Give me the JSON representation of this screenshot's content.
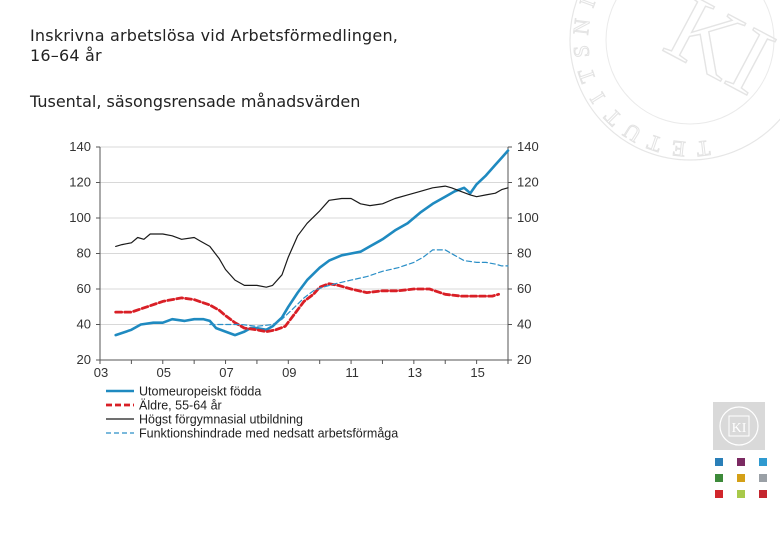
{
  "page": {
    "title": "Inskrivna arbetslösa vid Arbetsförmedlingen,\n16–64 år",
    "subtitle": "Tusental, säsongsrensade månadsvärden"
  },
  "watermark": {
    "lettering": [
      "K",
      "I",
      "I",
      "N",
      "S",
      "T",
      "I",
      "T",
      "U",
      "T",
      "E",
      "T"
    ],
    "logo_small": "KI"
  },
  "colors": {
    "blue": "#1f8ac0",
    "red": "#d91f26",
    "black": "#1a1a1a",
    "dashblue": "#2b8fc7",
    "grid": "#d8d8d8",
    "swatches": [
      "#2a7fb8",
      "#7b2a62",
      "#2f9ad0",
      "#3d8a3a",
      "#d4a017",
      "#9aa0a6",
      "#d1262b",
      "#a8c94a",
      "#c4262e"
    ]
  },
  "chart_data": {
    "type": "line",
    "title": "Inskrivna arbetslösa vid Arbetsförmedlingen, 16–64 år",
    "ylabel": "Tusental",
    "ylim": [
      20,
      140
    ],
    "yticks": [
      20,
      40,
      60,
      80,
      100,
      120,
      140
    ],
    "ytick_labels": [
      "20",
      "40",
      "60",
      "80",
      "100",
      "120",
      "140"
    ],
    "xlim": [
      2003,
      2016
    ],
    "xticks": [
      2003,
      2005,
      2007,
      2009,
      2011,
      2013,
      2015
    ],
    "xtick_labels": [
      "03",
      "05",
      "07",
      "09",
      "11",
      "13",
      "15"
    ],
    "grid": true,
    "legend_position": "bottom-left",
    "series": [
      {
        "name": "Utomeuropeiskt födda",
        "style": "solid",
        "color_key": "blue",
        "points": [
          [
            2003.5,
            34
          ],
          [
            2004.0,
            37
          ],
          [
            2004.3,
            40
          ],
          [
            2004.7,
            41
          ],
          [
            2005.0,
            41
          ],
          [
            2005.3,
            43
          ],
          [
            2005.7,
            42
          ],
          [
            2006.0,
            43
          ],
          [
            2006.3,
            43
          ],
          [
            2006.5,
            42
          ],
          [
            2006.7,
            38
          ],
          [
            2007.0,
            36
          ],
          [
            2007.3,
            34
          ],
          [
            2007.6,
            36
          ],
          [
            2007.8,
            38
          ],
          [
            2008.0,
            38
          ],
          [
            2008.3,
            37
          ],
          [
            2008.5,
            39
          ],
          [
            2008.8,
            44
          ],
          [
            2009.0,
            50
          ],
          [
            2009.3,
            58
          ],
          [
            2009.6,
            65
          ],
          [
            2010.0,
            72
          ],
          [
            2010.3,
            76
          ],
          [
            2010.7,
            79
          ],
          [
            2011.0,
            80
          ],
          [
            2011.3,
            81
          ],
          [
            2011.6,
            84
          ],
          [
            2012.0,
            88
          ],
          [
            2012.4,
            93
          ],
          [
            2012.8,
            97
          ],
          [
            2013.2,
            103
          ],
          [
            2013.6,
            108
          ],
          [
            2014.0,
            112
          ],
          [
            2014.3,
            115
          ],
          [
            2014.6,
            117
          ],
          [
            2014.8,
            114
          ],
          [
            2015.0,
            119
          ],
          [
            2015.3,
            124
          ],
          [
            2015.6,
            130
          ],
          [
            2015.8,
            134
          ],
          [
            2016.0,
            138
          ]
        ]
      },
      {
        "name": "Äldre, 55-64 år",
        "style": "dashed",
        "color_key": "red",
        "points": [
          [
            2003.5,
            47
          ],
          [
            2004.0,
            47
          ],
          [
            2004.5,
            50
          ],
          [
            2005.0,
            53
          ],
          [
            2005.3,
            54
          ],
          [
            2005.6,
            55
          ],
          [
            2006.0,
            54
          ],
          [
            2006.5,
            51
          ],
          [
            2006.8,
            48
          ],
          [
            2007.0,
            45
          ],
          [
            2007.3,
            41
          ],
          [
            2007.6,
            38
          ],
          [
            2008.0,
            37
          ],
          [
            2008.3,
            36
          ],
          [
            2008.6,
            37
          ],
          [
            2008.9,
            39
          ],
          [
            2009.2,
            46
          ],
          [
            2009.5,
            53
          ],
          [
            2009.8,
            57
          ],
          [
            2010.0,
            61
          ],
          [
            2010.3,
            63
          ],
          [
            2010.6,
            62
          ],
          [
            2011.0,
            60
          ],
          [
            2011.5,
            58
          ],
          [
            2012.0,
            59
          ],
          [
            2012.5,
            59
          ],
          [
            2013.0,
            60
          ],
          [
            2013.5,
            60
          ],
          [
            2014.0,
            57
          ],
          [
            2014.5,
            56
          ],
          [
            2015.0,
            56
          ],
          [
            2015.5,
            56
          ],
          [
            2015.7,
            57
          ]
        ]
      },
      {
        "name": "Högst förgymnasial utbildning",
        "style": "solid-thin",
        "color_key": "black",
        "points": [
          [
            2003.5,
            84
          ],
          [
            2003.7,
            85
          ],
          [
            2004.0,
            86
          ],
          [
            2004.2,
            89
          ],
          [
            2004.4,
            88
          ],
          [
            2004.6,
            91
          ],
          [
            2005.0,
            91
          ],
          [
            2005.3,
            90
          ],
          [
            2005.6,
            88
          ],
          [
            2006.0,
            89
          ],
          [
            2006.2,
            87
          ],
          [
            2006.5,
            84
          ],
          [
            2006.8,
            77
          ],
          [
            2007.0,
            71
          ],
          [
            2007.3,
            65
          ],
          [
            2007.6,
            62
          ],
          [
            2008.0,
            62
          ],
          [
            2008.3,
            61
          ],
          [
            2008.5,
            62
          ],
          [
            2008.8,
            68
          ],
          [
            2009.0,
            78
          ],
          [
            2009.3,
            90
          ],
          [
            2009.6,
            97
          ],
          [
            2010.0,
            104
          ],
          [
            2010.3,
            110
          ],
          [
            2010.7,
            111
          ],
          [
            2011.0,
            111
          ],
          [
            2011.3,
            108
          ],
          [
            2011.6,
            107
          ],
          [
            2012.0,
            108
          ],
          [
            2012.4,
            111
          ],
          [
            2012.8,
            113
          ],
          [
            2013.2,
            115
          ],
          [
            2013.6,
            117
          ],
          [
            2014.0,
            118
          ],
          [
            2014.2,
            117
          ],
          [
            2014.5,
            115
          ],
          [
            2014.8,
            113
          ],
          [
            2015.0,
            112
          ],
          [
            2015.3,
            113
          ],
          [
            2015.6,
            114
          ],
          [
            2015.8,
            116
          ],
          [
            2016.0,
            117
          ]
        ]
      },
      {
        "name": "Funktionshindrade med nedsatt arbetsförmåga",
        "style": "dashed-thin",
        "color_key": "dashblue",
        "points": [
          [
            2006.5,
            40
          ],
          [
            2007.0,
            40
          ],
          [
            2007.5,
            40
          ],
          [
            2008.0,
            39
          ],
          [
            2008.5,
            40
          ],
          [
            2008.8,
            43
          ],
          [
            2009.1,
            48
          ],
          [
            2009.5,
            55
          ],
          [
            2009.8,
            59
          ],
          [
            2010.1,
            61
          ],
          [
            2010.5,
            63
          ],
          [
            2011.0,
            65
          ],
          [
            2011.5,
            67
          ],
          [
            2012.0,
            70
          ],
          [
            2012.5,
            72
          ],
          [
            2013.0,
            75
          ],
          [
            2013.3,
            78
          ],
          [
            2013.6,
            82
          ],
          [
            2014.0,
            82
          ],
          [
            2014.3,
            79
          ],
          [
            2014.6,
            76
          ],
          [
            2015.0,
            75
          ],
          [
            2015.3,
            75
          ],
          [
            2015.6,
            74
          ],
          [
            2015.8,
            73
          ],
          [
            2016.0,
            73
          ]
        ]
      }
    ]
  }
}
